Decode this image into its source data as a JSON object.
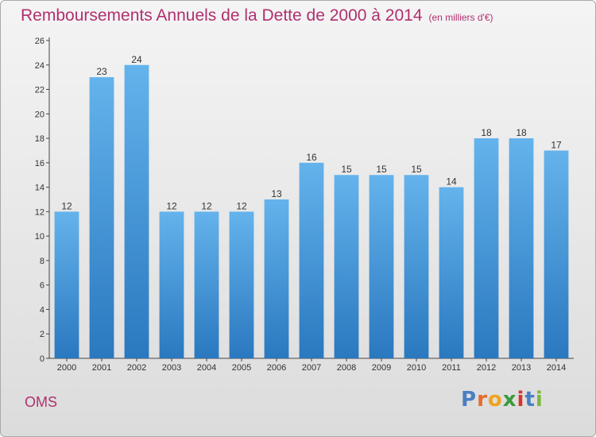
{
  "title": "Remboursements Annuels de la Dette de 2000 à 2014",
  "subtitle": "(en milliers d'€)",
  "city": "OMS",
  "logo": {
    "letters": [
      "P",
      "r",
      "o",
      "x",
      "i",
      "t",
      "i"
    ],
    "colors": [
      "#4a7fc1",
      "#e46c2b",
      "#f0a21b",
      "#3c9a3c",
      "#d9332e",
      "#4a7fc1",
      "#7cb83e"
    ]
  },
  "colors": {
    "bar_top": "#64b3ec",
    "bar_bottom": "#2a78bf",
    "title": "#b0306f"
  },
  "chart_data": {
    "type": "bar",
    "categories": [
      "2000",
      "2001",
      "2002",
      "2003",
      "2004",
      "2005",
      "2006",
      "2007",
      "2008",
      "2009",
      "2010",
      "2011",
      "2012",
      "2013",
      "2014"
    ],
    "values": [
      12,
      23,
      24,
      12,
      12,
      12,
      13,
      16,
      15,
      15,
      15,
      14,
      18,
      18,
      17
    ],
    "ylim": [
      0,
      26
    ],
    "yticks": [
      0,
      2,
      4,
      6,
      8,
      10,
      12,
      14,
      16,
      18,
      20,
      22,
      24,
      26
    ],
    "grid": false,
    "data_labels": true
  }
}
